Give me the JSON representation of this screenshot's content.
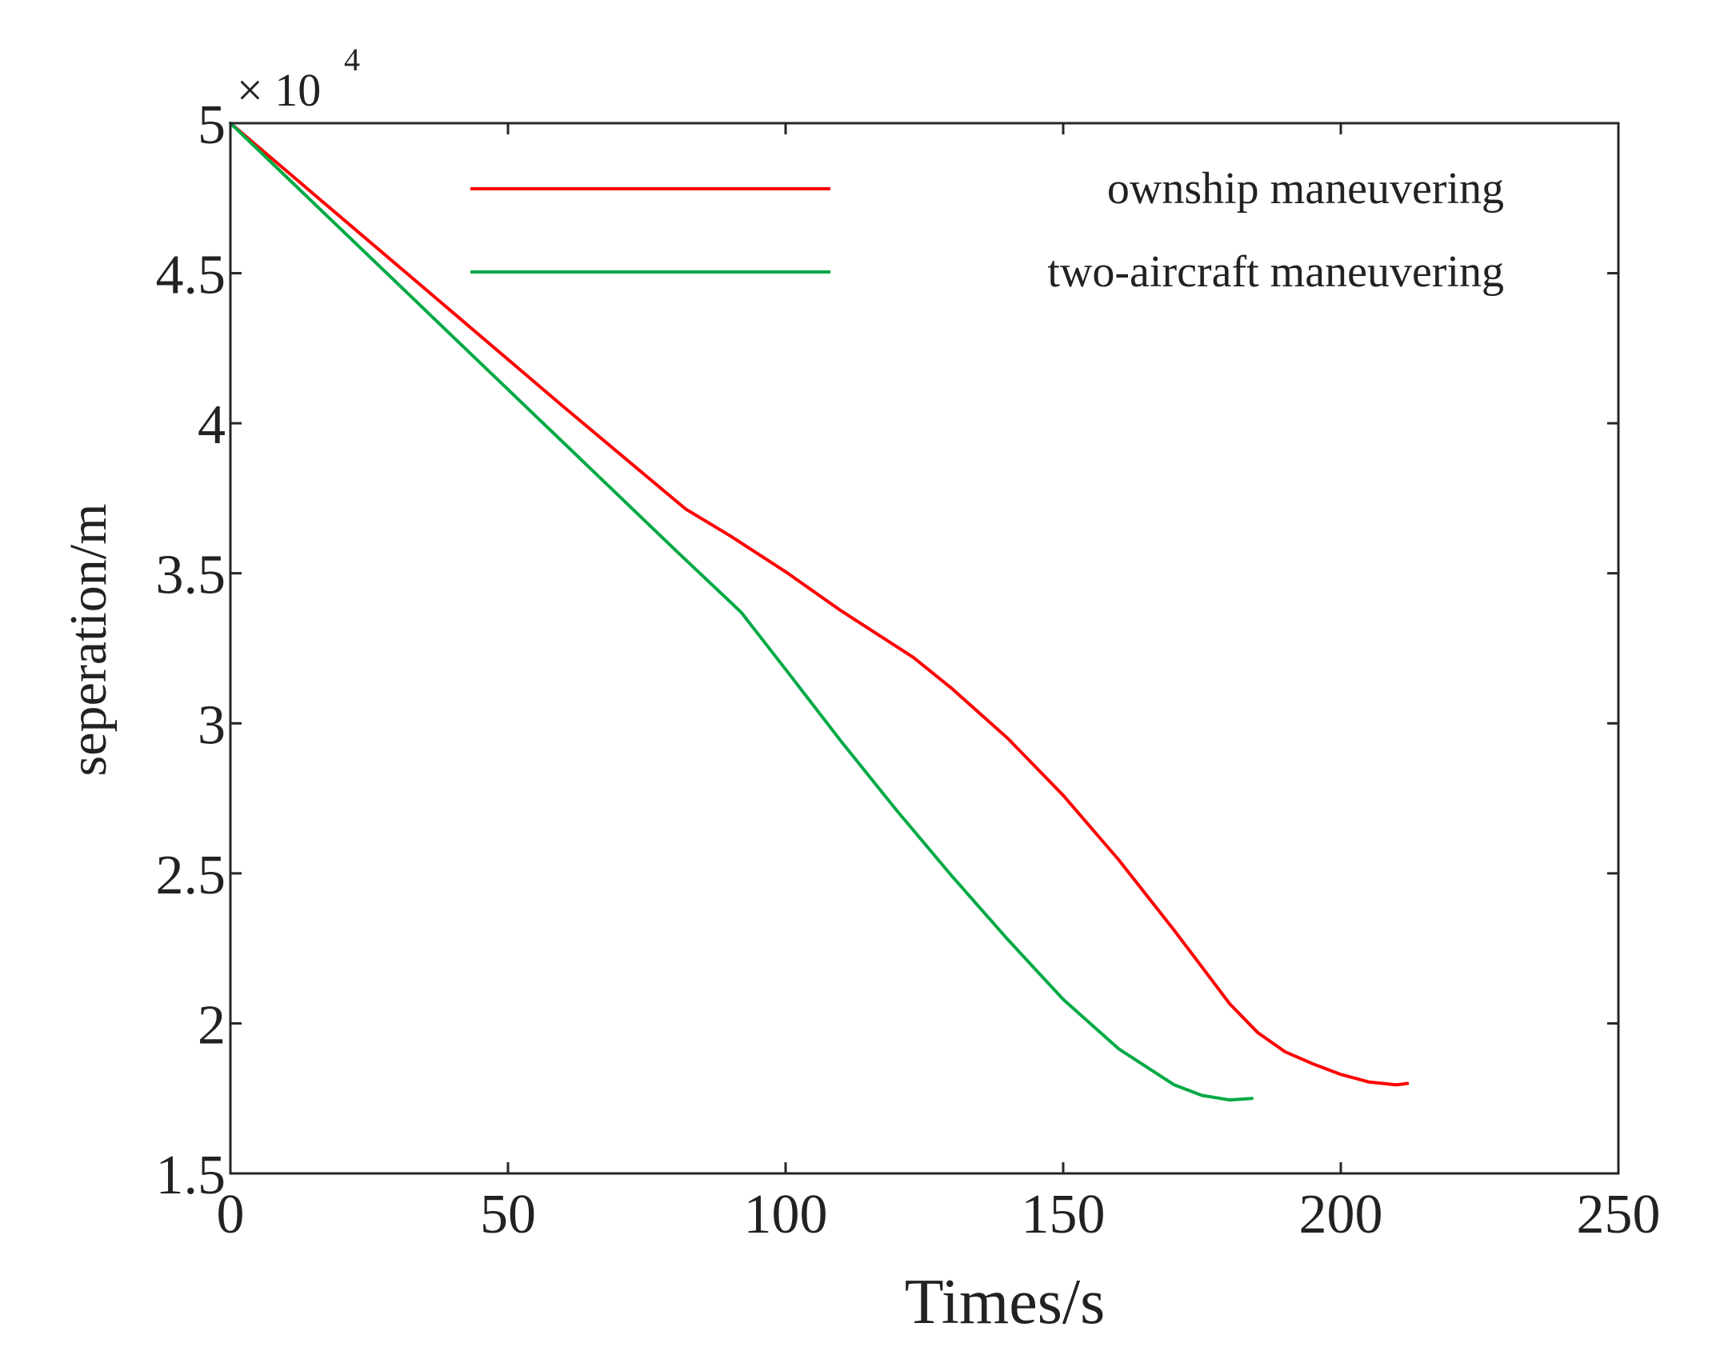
{
  "chart_data": {
    "type": "line",
    "title": "",
    "xlabel": "Times/s",
    "ylabel": "seperation/m",
    "xlim": [
      0,
      250
    ],
    "ylim": [
      1.5,
      5
    ],
    "xticks": [
      0,
      50,
      100,
      150,
      200,
      250
    ],
    "yticks": [
      1.5,
      2,
      2.5,
      3,
      3.5,
      4,
      4.5,
      5
    ],
    "xtick_labels": [
      "0",
      "50",
      "100",
      "150",
      "200",
      "250"
    ],
    "ytick_labels": [
      "1.5",
      "2",
      "2.5",
      "3",
      "3.5",
      "4",
      "4.5",
      "5"
    ],
    "y_multiplier_base": "× 10",
    "y_multiplier_exp": "4",
    "grid": false,
    "legend_position": "top-right",
    "series": [
      {
        "name": "ownship maneuvering",
        "color": "#ff0000",
        "x": [
          0,
          20,
          40,
          60,
          70,
          82,
          90,
          100,
          110,
          123,
          130,
          140,
          150,
          160,
          170,
          180,
          185,
          190,
          195,
          200,
          205,
          210,
          212
        ],
        "y": [
          5.0,
          4.685,
          4.37,
          4.055,
          3.9,
          3.714,
          3.625,
          3.505,
          3.375,
          3.22,
          3.115,
          2.95,
          2.76,
          2.545,
          2.31,
          2.065,
          1.97,
          1.905,
          1.865,
          1.83,
          1.805,
          1.795,
          1.8
        ]
      },
      {
        "name": "two-aircraft maneuvering",
        "color": "#00aa44",
        "x": [
          0,
          20,
          40,
          60,
          80,
          92,
          100,
          110,
          120,
          130,
          140,
          150,
          160,
          170,
          175,
          180,
          184
        ],
        "y": [
          5.0,
          4.645,
          4.29,
          3.935,
          3.58,
          3.37,
          3.18,
          2.94,
          2.71,
          2.49,
          2.28,
          2.08,
          1.915,
          1.795,
          1.76,
          1.745,
          1.75
        ]
      }
    ]
  }
}
